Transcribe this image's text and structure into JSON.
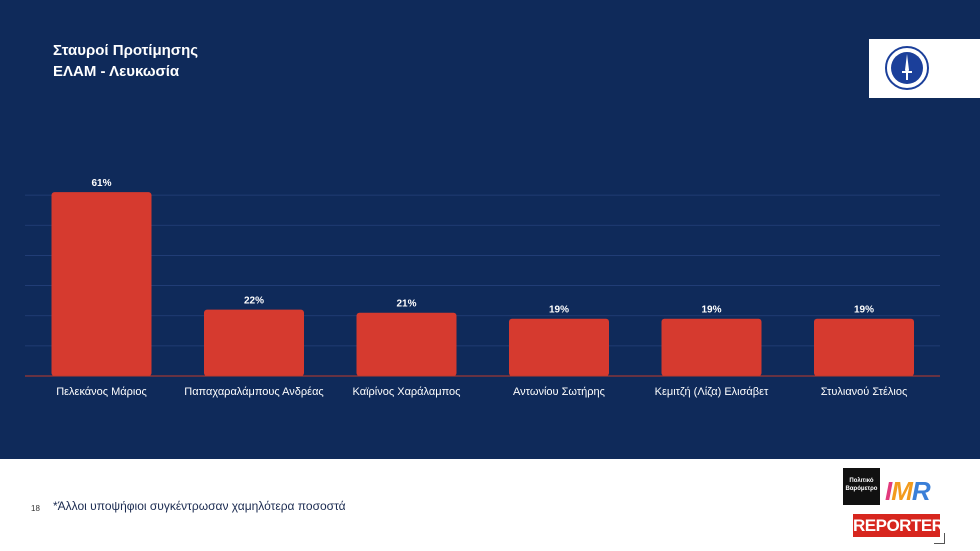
{
  "header": {
    "title_line1": "Σταυροί Προτίμησης",
    "title_line2": "ΕΛΑΜ - Λευκωσία"
  },
  "logo": {
    "icon": "elam-party-emblem"
  },
  "chart_data": {
    "type": "bar",
    "title": "Σταυροί Προτίμησης ΕΛΑΜ - Λευκωσία",
    "categories": [
      "Πελεκάνος Μάριος",
      "Παπαχαραλάμπους Ανδρέας",
      "Καϊρίνος Χαράλαμπος",
      "Αντωνίου Σωτήρης",
      "Κεμιτζή (Λίζα) Ελισάβετ",
      "Στυλιανού Στέλιος"
    ],
    "values": [
      61,
      22,
      21,
      19,
      19,
      19
    ],
    "data_labels": [
      "61%",
      "22%",
      "21%",
      "19%",
      "19%",
      "19%"
    ],
    "unit": "%",
    "ylim": [
      0,
      70
    ],
    "grid": true,
    "legend": "none"
  },
  "footer": {
    "page_number": "18",
    "note": "*Άλλοι υποψήφιοι συγκέντρωσαν χαμηλότερα ποσοστά",
    "brand_politiko": "Πολιτικό Βαρόμετρο",
    "brand_imr": "IMR",
    "brand_reporter": "REPORTER"
  },
  "colors": {
    "background": "#0f2a5a",
    "bar": "#d63a2f",
    "text": "#ffffff"
  }
}
